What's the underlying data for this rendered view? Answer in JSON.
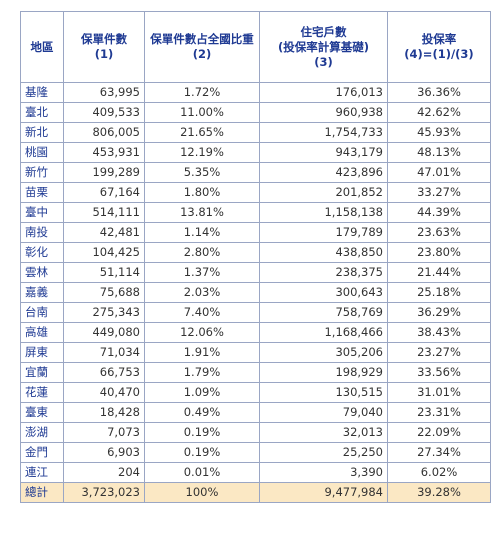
{
  "table": {
    "headers": {
      "region": "地區",
      "count": [
        "保單件數",
        "(1)"
      ],
      "ratio": [
        "保單件數占全國比重",
        "(2)"
      ],
      "homes": [
        "住宅戶數",
        "(投保率計算基礎)",
        "(3)"
      ],
      "rate": [
        "投保率",
        "(4)=(1)/(3)"
      ]
    },
    "rows": [
      {
        "region": "基隆",
        "count": "63,995",
        "ratio": "1.72%",
        "homes": "176,013",
        "rate": "36.36%"
      },
      {
        "region": "臺北",
        "count": "409,533",
        "ratio": "11.00%",
        "homes": "960,938",
        "rate": "42.62%"
      },
      {
        "region": "新北",
        "count": "806,005",
        "ratio": "21.65%",
        "homes": "1,754,733",
        "rate": "45.93%"
      },
      {
        "region": "桃園",
        "count": "453,931",
        "ratio": "12.19%",
        "homes": "943,179",
        "rate": "48.13%"
      },
      {
        "region": "新竹",
        "count": "199,289",
        "ratio": "5.35%",
        "homes": "423,896",
        "rate": "47.01%"
      },
      {
        "region": "苗栗",
        "count": "67,164",
        "ratio": "1.80%",
        "homes": "201,852",
        "rate": "33.27%"
      },
      {
        "region": "臺中",
        "count": "514,111",
        "ratio": "13.81%",
        "homes": "1,158,138",
        "rate": "44.39%"
      },
      {
        "region": "南投",
        "count": "42,481",
        "ratio": "1.14%",
        "homes": "179,789",
        "rate": "23.63%"
      },
      {
        "region": "彰化",
        "count": "104,425",
        "ratio": "2.80%",
        "homes": "438,850",
        "rate": "23.80%"
      },
      {
        "region": "雲林",
        "count": "51,114",
        "ratio": "1.37%",
        "homes": "238,375",
        "rate": "21.44%"
      },
      {
        "region": "嘉義",
        "count": "75,688",
        "ratio": "2.03%",
        "homes": "300,643",
        "rate": "25.18%"
      },
      {
        "region": "台南",
        "count": "275,343",
        "ratio": "7.40%",
        "homes": "758,769",
        "rate": "36.29%"
      },
      {
        "region": "高雄",
        "count": "449,080",
        "ratio": "12.06%",
        "homes": "1,168,466",
        "rate": "38.43%"
      },
      {
        "region": "屏東",
        "count": "71,034",
        "ratio": "1.91%",
        "homes": "305,206",
        "rate": "23.27%"
      },
      {
        "region": "宜蘭",
        "count": "66,753",
        "ratio": "1.79%",
        "homes": "198,929",
        "rate": "33.56%"
      },
      {
        "region": "花蓮",
        "count": "40,470",
        "ratio": "1.09%",
        "homes": "130,515",
        "rate": "31.01%"
      },
      {
        "region": "臺東",
        "count": "18,428",
        "ratio": "0.49%",
        "homes": "79,040",
        "rate": "23.31%"
      },
      {
        "region": "澎湖",
        "count": "7,073",
        "ratio": "0.19%",
        "homes": "32,013",
        "rate": "22.09%"
      },
      {
        "region": "金門",
        "count": "6,903",
        "ratio": "0.19%",
        "homes": "25,250",
        "rate": "27.34%"
      },
      {
        "region": "連江",
        "count": "204",
        "ratio": "0.01%",
        "homes": "3,390",
        "rate": "6.02%"
      }
    ],
    "total": {
      "region": "總計",
      "count": "3,723,023",
      "ratio": "100%",
      "homes": "9,477,984",
      "rate": "39.28%"
    }
  }
}
